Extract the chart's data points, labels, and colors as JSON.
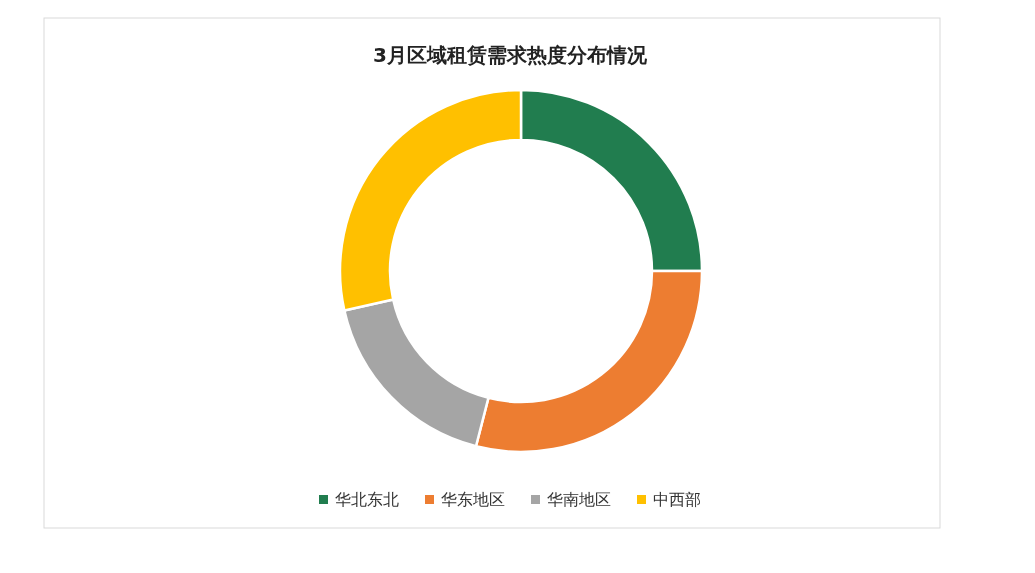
{
  "chart_data": {
    "type": "donut",
    "title": "3月区域租赁需求热度分布情况",
    "categories": [
      "华北东北",
      "华东地区",
      "华南地区",
      "中西部"
    ],
    "values": [
      25,
      29,
      17.5,
      28.5
    ],
    "colors": [
      "#217d4f",
      "#ed7d31",
      "#a5a5a5",
      "#ffc000"
    ],
    "legend": "bottom"
  }
}
